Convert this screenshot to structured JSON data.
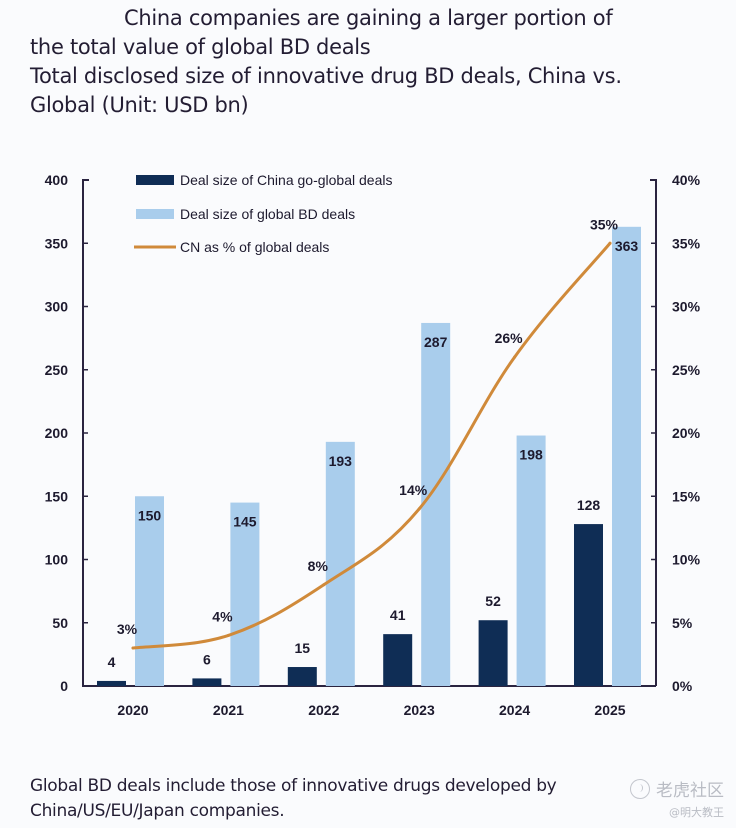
{
  "title": {
    "line1": "China companies are gaining a larger portion of",
    "line2": "the total value of global BD deals",
    "line3": "Total disclosed size of innovative drug BD deals, China vs.",
    "line4": "Global (Unit: USD bn)"
  },
  "footnote": {
    "line1": "Global BD deals include those of innovative drugs developed by",
    "line2": "China/US/EU/Japan companies."
  },
  "watermark": {
    "main": "老虎社区",
    "sub": "@明大教王"
  },
  "colors": {
    "china_bar": "#0f2d55",
    "global_bar": "#a9cdec",
    "line": "#d08a3a",
    "axis": "#2a2440"
  },
  "chart_data": {
    "type": "bar",
    "title": "Total disclosed size of innovative drug BD deals, China vs. Global (Unit: USD bn)",
    "categories": [
      "2020",
      "2021",
      "2022",
      "2023",
      "2024",
      "2025"
    ],
    "series": [
      {
        "name": "Deal size of China go-global deals",
        "type": "bar",
        "axis": "left",
        "values": [
          4,
          6,
          15,
          41,
          52,
          128
        ],
        "labels": [
          "4",
          "6",
          "15",
          "41",
          "52",
          "128"
        ]
      },
      {
        "name": "Deal size of global BD deals",
        "type": "bar",
        "axis": "left",
        "values": [
          150,
          145,
          193,
          287,
          198,
          363
        ],
        "labels": [
          "150",
          "145",
          "193",
          "287",
          "198",
          "363"
        ]
      },
      {
        "name": "CN as % of global deals",
        "type": "line",
        "axis": "right",
        "values": [
          3,
          4,
          8,
          14,
          26,
          35
        ],
        "labels": [
          "3%",
          "4%",
          "8%",
          "14%",
          "26%",
          "35%"
        ]
      }
    ],
    "y_left": {
      "min": 0,
      "max": 400,
      "ticks": [
        "0",
        "50",
        "100",
        "150",
        "200",
        "250",
        "300",
        "350",
        "400"
      ]
    },
    "y_right": {
      "min": 0,
      "max": 40,
      "ticks": [
        "0%",
        "5%",
        "10%",
        "15%",
        "20%",
        "25%",
        "30%",
        "35%",
        "40%"
      ]
    },
    "xlabel": "",
    "ylabel": "",
    "grid": false,
    "legend": "top-left"
  }
}
